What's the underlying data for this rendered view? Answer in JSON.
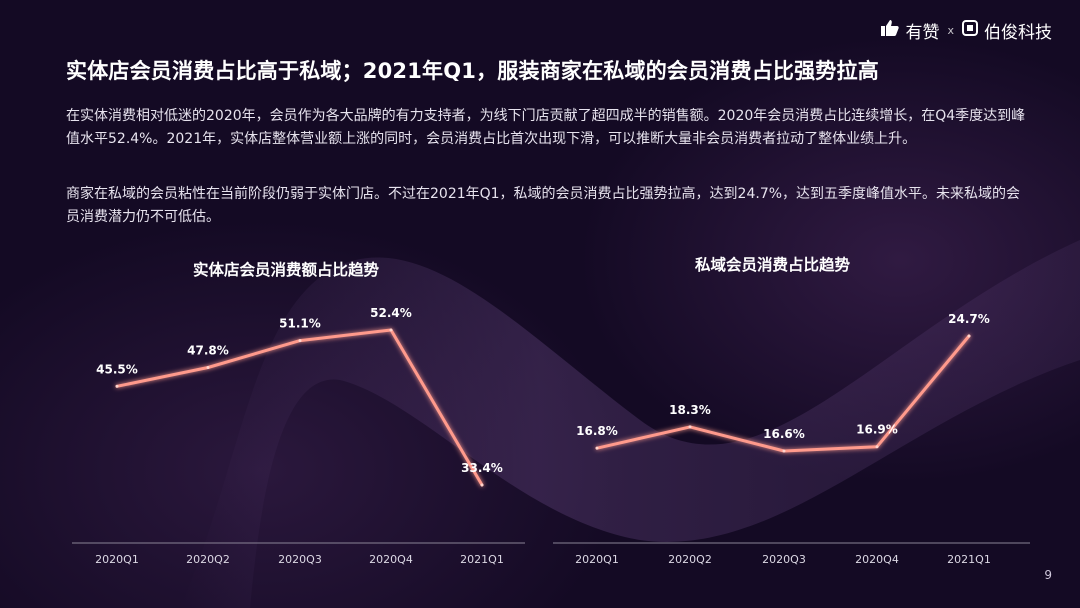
{
  "header": {
    "brand_left": "有赞",
    "separator": "x",
    "brand_right": "伯俊科技"
  },
  "title": "实体店会员消费占比高于私域；2021年Q1，服装商家在私域的会员消费占比强势拉高",
  "paragraphs": [
    "在实体消费相对低迷的2020年，会员作为各大品牌的有力支持者，为线下门店贡献了超四成半的销售额。2020年会员消费占比连续增长，在Q4季度达到峰值水平52.4%。2021年，实体店整体营业额上涨的同时，会员消费占比首次出现下滑，可以推断大量非会员消费者拉动了整体业绩上升。",
    "商家在私域的会员粘性在当前阶段仍弱于实体门店。不过在2021年Q1，私域的会员消费占比强势拉高，达到24.7%，达到五季度峰值水平。未来私域的会员消费潜力仍不可低估。"
  ],
  "chart_data": [
    {
      "type": "line",
      "title": "实体店会员消费额占比趋势",
      "categories": [
        "2020Q1",
        "2020Q2",
        "2020Q3",
        "2020Q4",
        "2021Q1"
      ],
      "values": [
        45.5,
        47.8,
        51.1,
        52.4,
        33.4
      ],
      "data_labels": [
        "45.5%",
        "47.8%",
        "51.1%",
        "52.4%",
        "33.4%"
      ],
      "unit": "%",
      "ylim": [
        20,
        58
      ],
      "grid": false,
      "line_color": "#ff9a8c"
    },
    {
      "type": "line",
      "title": "私域会员消费占比趋势",
      "categories": [
        "2020Q1",
        "2020Q2",
        "2020Q3",
        "2020Q4",
        "2021Q1"
      ],
      "values": [
        16.8,
        18.3,
        16.6,
        16.9,
        24.7
      ],
      "data_labels": [
        "16.8%",
        "18.3%",
        "16.6%",
        "16.9%",
        "24.7%"
      ],
      "unit": "%",
      "ylim": [
        5,
        27
      ],
      "grid": false,
      "line_color": "#ff9a8c"
    }
  ],
  "page_number": "9"
}
